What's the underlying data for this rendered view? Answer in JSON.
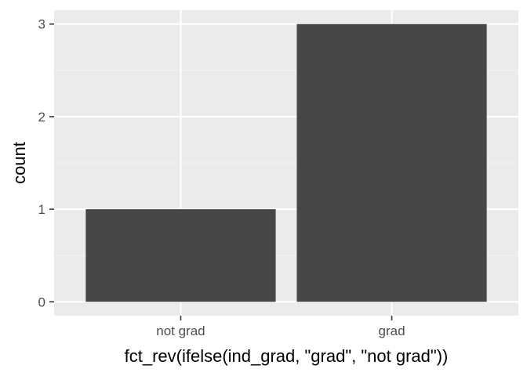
{
  "chart_data": {
    "type": "bar",
    "title": "",
    "xlabel": "fct_rev(ifelse(ind_grad, \"grad\", \"not grad\"))",
    "ylabel": "count",
    "categories": [
      "not grad",
      "grad"
    ],
    "values": [
      1,
      3
    ],
    "ylim": [
      0,
      3.15
    ],
    "yticks": [
      0,
      1,
      2,
      3
    ],
    "grid": true,
    "legend": "none",
    "colors": {
      "bar": "#474747",
      "panel": "#ebebeb",
      "grid_major": "#ffffff",
      "tick_text": "#4d4d4d",
      "axis_title": "#000000"
    }
  }
}
